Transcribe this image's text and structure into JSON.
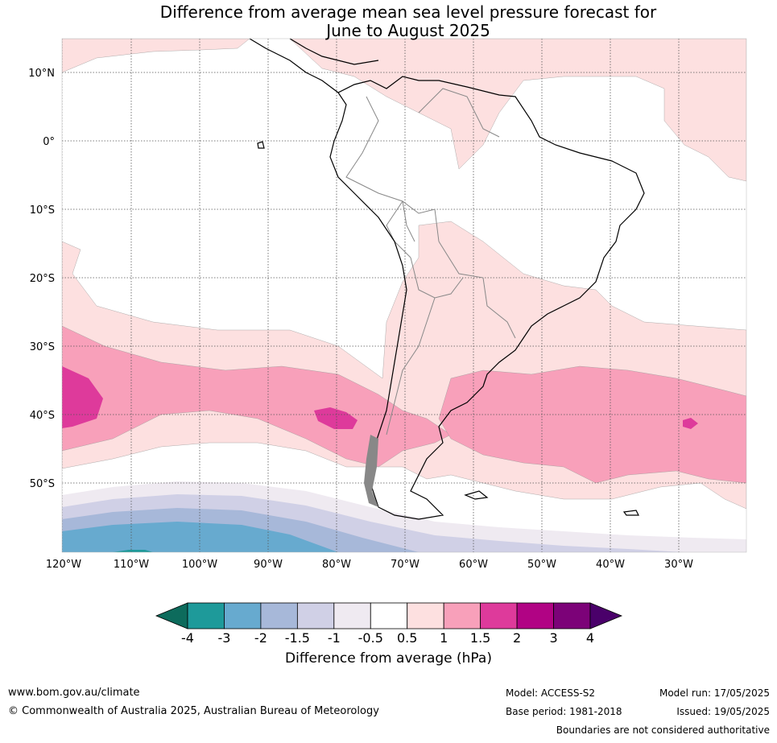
{
  "title_line1": "Difference from average mean sea level pressure forecast for",
  "title_line2": "June to August 2025",
  "lat_labels": [
    "10°N",
    "0°",
    "10°S",
    "20°S",
    "30°S",
    "40°S",
    "50°S"
  ],
  "lon_labels": [
    "120°W",
    "110°W",
    "100°W",
    "90°W",
    "80°W",
    "70°W",
    "60°W",
    "50°W",
    "40°W",
    "30°W"
  ],
  "legend": {
    "title": "Difference from average (hPa)",
    "ticks": [
      "-4",
      "-3",
      "-2",
      "-1.5",
      "-1",
      "-0.5",
      "0.5",
      "1",
      "1.5",
      "2",
      "3",
      "4"
    ],
    "colors": [
      "#0d6b5c",
      "#1e9a9a",
      "#67aacf",
      "#a7b8d9",
      "#d0d0e6",
      "#efeaf1",
      "#ffffff",
      "#fde0e0",
      "#f8a0ba",
      "#de3a9b",
      "#b10384",
      "#7c0278",
      "#4a006a"
    ]
  },
  "footer": {
    "website": "www.bom.gov.au/climate",
    "copyright": "© Commonwealth of Australia 2025, Australian Bureau of Meteorology",
    "model": "Model: ACCESS-S2",
    "model_run": "Model run: 17/05/2025",
    "base_period": "Base period: 1981-2018",
    "issued": "Issued: 19/05/2025",
    "disclaimer": "Boundaries are not considered authoritative"
  }
}
